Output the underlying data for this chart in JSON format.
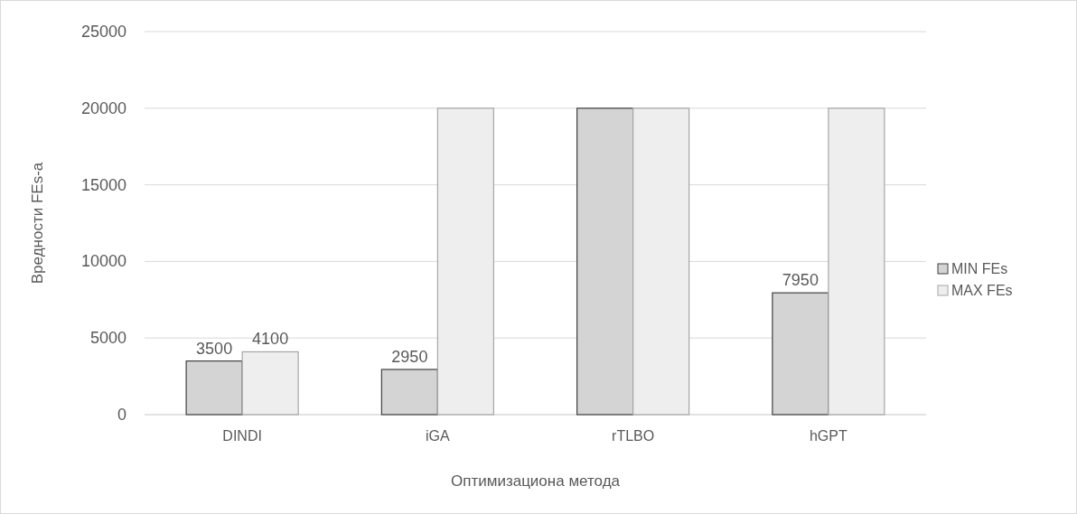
{
  "chart_data": {
    "type": "bar",
    "xlabel": "Оптимизациона метода",
    "ylabel": "Вредности FEs-a",
    "categories": [
      "DINDI",
      "iGA",
      "rTLBO",
      "hGPT"
    ],
    "series": [
      {
        "name": "MIN FEs",
        "color": "#d4d4d4",
        "values": [
          3500,
          2950,
          20000,
          7950
        ],
        "value_labels": [
          "3500",
          "2950",
          null,
          "7950"
        ]
      },
      {
        "name": "MAX FEs",
        "color": "#eeeeee",
        "values": [
          4100,
          20000,
          20000,
          20000
        ],
        "value_labels": [
          "4100",
          null,
          null,
          null
        ]
      }
    ],
    "ylim": [
      0,
      25000
    ],
    "yticks": [
      0,
      5000,
      10000,
      15000,
      20000,
      25000
    ],
    "grid": "y",
    "legend": "right"
  }
}
